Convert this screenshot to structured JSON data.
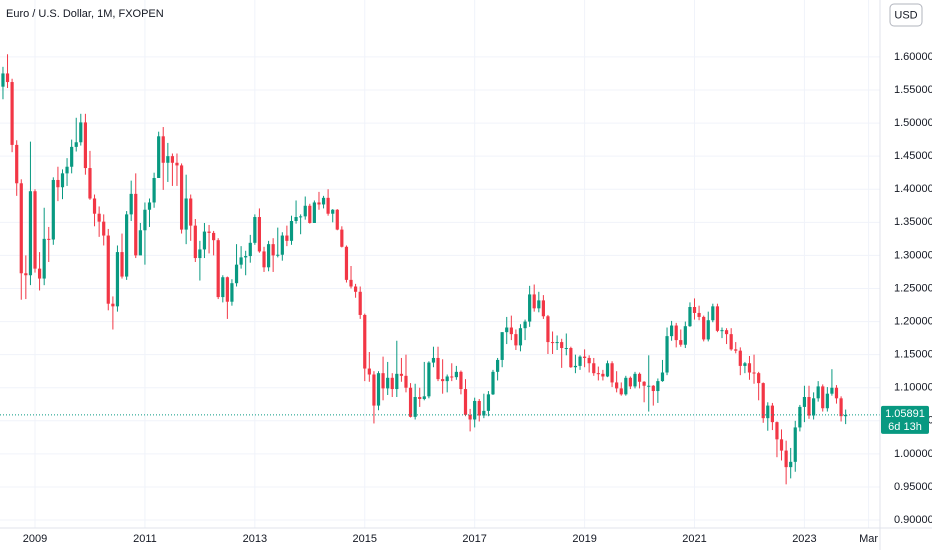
{
  "chart_data": {
    "type": "candlestick",
    "title": "Euro / U.S. Dollar, 1M, FXOPEN",
    "currency": "USD",
    "up_color": "#089981",
    "down_color": "#f23645",
    "grid": true,
    "last_price": 1.05891,
    "countdown": "6d 13h",
    "xlim": [
      2008.363,
      2024.375
    ],
    "xticks": [
      2009,
      2011,
      2013,
      2015,
      2017,
      2019,
      2021,
      2023,
      {
        "value": 2024.167,
        "label": "Mar"
      }
    ],
    "ylim": [
      0.888,
      1.686
    ],
    "yticks": [
      {
        "value": 0.9,
        "label": "0.90000"
      },
      {
        "value": 0.95,
        "label": "0.95000"
      },
      {
        "value": 1.0,
        "label": "1.00000"
      },
      {
        "value": 1.05,
        "label": "1.05000"
      },
      {
        "value": 1.1,
        "label": "1.10000"
      },
      {
        "value": 1.15,
        "label": "1.15000"
      },
      {
        "value": 1.2,
        "label": "1.20000"
      },
      {
        "value": 1.25,
        "label": "1.25000"
      },
      {
        "value": 1.3,
        "label": "1.30000"
      },
      {
        "value": 1.35,
        "label": "1.35000"
      },
      {
        "value": 1.4,
        "label": "1.40000"
      },
      {
        "value": 1.45,
        "label": "1.45000"
      },
      {
        "value": 1.5,
        "label": "1.50000"
      },
      {
        "value": 1.55,
        "label": "1.55000"
      },
      {
        "value": 1.6,
        "label": "1.60000"
      }
    ],
    "x": [
      2008.417,
      2008.5,
      2008.583,
      2008.667,
      2008.75,
      2008.833,
      2008.917,
      2009,
      2009.083,
      2009.167,
      2009.25,
      2009.333,
      2009.417,
      2009.5,
      2009.583,
      2009.667,
      2009.75,
      2009.833,
      2009.917,
      2010,
      2010.083,
      2010.167,
      2010.25,
      2010.333,
      2010.417,
      2010.5,
      2010.583,
      2010.667,
      2010.75,
      2010.833,
      2010.917,
      2011,
      2011.083,
      2011.167,
      2011.25,
      2011.333,
      2011.417,
      2011.5,
      2011.583,
      2011.667,
      2011.75,
      2011.833,
      2011.917,
      2012,
      2012.083,
      2012.167,
      2012.25,
      2012.333,
      2012.417,
      2012.5,
      2012.583,
      2012.667,
      2012.75,
      2012.833,
      2012.917,
      2013,
      2013.083,
      2013.167,
      2013.25,
      2013.333,
      2013.417,
      2013.5,
      2013.583,
      2013.667,
      2013.75,
      2013.833,
      2013.917,
      2014,
      2014.083,
      2014.167,
      2014.25,
      2014.333,
      2014.417,
      2014.5,
      2014.583,
      2014.667,
      2014.75,
      2014.833,
      2014.917,
      2015,
      2015.083,
      2015.167,
      2015.25,
      2015.333,
      2015.417,
      2015.5,
      2015.583,
      2015.667,
      2015.75,
      2015.833,
      2015.917,
      2016,
      2016.083,
      2016.167,
      2016.25,
      2016.333,
      2016.417,
      2016.5,
      2016.583,
      2016.667,
      2016.75,
      2016.833,
      2016.917,
      2017,
      2017.083,
      2017.167,
      2017.25,
      2017.333,
      2017.417,
      2017.5,
      2017.583,
      2017.667,
      2017.75,
      2017.833,
      2017.917,
      2018,
      2018.083,
      2018.167,
      2018.25,
      2018.333,
      2018.417,
      2018.5,
      2018.583,
      2018.667,
      2018.75,
      2018.833,
      2018.917,
      2019,
      2019.083,
      2019.167,
      2019.25,
      2019.333,
      2019.417,
      2019.5,
      2019.583,
      2019.667,
      2019.75,
      2019.833,
      2019.917,
      2020,
      2020.083,
      2020.167,
      2020.25,
      2020.333,
      2020.417,
      2020.5,
      2020.583,
      2020.667,
      2020.75,
      2020.833,
      2020.917,
      2021,
      2021.083,
      2021.167,
      2021.25,
      2021.333,
      2021.417,
      2021.5,
      2021.583,
      2021.667,
      2021.75,
      2021.833,
      2021.917,
      2022,
      2022.083,
      2022.167,
      2022.25,
      2022.333,
      2022.417,
      2022.5,
      2022.583,
      2022.667,
      2022.75,
      2022.833,
      2022.917,
      2023,
      2023.083,
      2023.167,
      2023.25,
      2023.333,
      2023.417,
      2023.5,
      2023.583,
      2023.667,
      2023.75
    ],
    "open": [
      1.555,
      1.575,
      1.562,
      1.467,
      1.409,
      1.273,
      1.27,
      1.397,
      1.28,
      1.265,
      1.325,
      1.324,
      1.414,
      1.403,
      1.424,
      1.434,
      1.464,
      1.471,
      1.501,
      1.432,
      1.386,
      1.363,
      1.351,
      1.33,
      1.227,
      1.223,
      1.305,
      1.268,
      1.362,
      1.393,
      1.3,
      1.338,
      1.369,
      1.38,
      1.417,
      1.48,
      1.44,
      1.45,
      1.44,
      1.436,
      1.339,
      1.386,
      1.345,
      1.296,
      1.309,
      1.336,
      1.334,
      1.323,
      1.237,
      1.267,
      1.23,
      1.258,
      1.286,
      1.297,
      1.299,
      1.319,
      1.358,
      1.306,
      1.282,
      1.317,
      1.3,
      1.301,
      1.33,
      1.322,
      1.352,
      1.358,
      1.359,
      1.375,
      1.349,
      1.38,
      1.377,
      1.387,
      1.363,
      1.369,
      1.339,
      1.313,
      1.263,
      1.253,
      1.245,
      1.21,
      1.129,
      1.12,
      1.073,
      1.122,
      1.099,
      1.115,
      1.098,
      1.121,
      1.118,
      1.1,
      1.056,
      1.086,
      1.083,
      1.087,
      1.138,
      1.145,
      1.113,
      1.11,
      1.117,
      1.116,
      1.124,
      1.098,
      1.059,
      1.052,
      1.08,
      1.058,
      1.065,
      1.09,
      1.124,
      1.142,
      1.184,
      1.191,
      1.181,
      1.164,
      1.19,
      1.2,
      1.241,
      1.22,
      1.232,
      1.208,
      1.169,
      1.168,
      1.169,
      1.16,
      1.16,
      1.131,
      1.133,
      1.147,
      1.145,
      1.137,
      1.122,
      1.121,
      1.117,
      1.137,
      1.108,
      1.099,
      1.09,
      1.115,
      1.102,
      1.121,
      1.109,
      1.103,
      1.103,
      1.095,
      1.11,
      1.123,
      1.178,
      1.194,
      1.172,
      1.165,
      1.193,
      1.222,
      1.213,
      1.207,
      1.173,
      1.202,
      1.223,
      1.186,
      1.187,
      1.181,
      1.158,
      1.156,
      1.133,
      1.137,
      1.123,
      1.122,
      1.107,
      1.054,
      1.073,
      1.048,
      1.022,
      1.005,
      0.98,
      0.988,
      1.04,
      1.071,
      1.086,
      1.058,
      1.084,
      1.102,
      1.069,
      1.091,
      1.1,
      1.084,
      1.057
    ],
    "high": [
      1.585,
      1.604,
      1.567,
      1.474,
      1.415,
      1.3,
      1.472,
      1.4,
      1.305,
      1.372,
      1.343,
      1.418,
      1.434,
      1.43,
      1.447,
      1.475,
      1.508,
      1.514,
      1.514,
      1.458,
      1.392,
      1.374,
      1.362,
      1.34,
      1.238,
      1.315,
      1.333,
      1.367,
      1.413,
      1.424,
      1.349,
      1.38,
      1.386,
      1.425,
      1.487,
      1.494,
      1.47,
      1.454,
      1.454,
      1.439,
      1.422,
      1.392,
      1.355,
      1.322,
      1.349,
      1.346,
      1.337,
      1.326,
      1.27,
      1.268,
      1.264,
      1.317,
      1.314,
      1.307,
      1.331,
      1.362,
      1.371,
      1.313,
      1.322,
      1.326,
      1.342,
      1.335,
      1.345,
      1.36,
      1.383,
      1.362,
      1.389,
      1.378,
      1.383,
      1.396,
      1.39,
      1.4,
      1.37,
      1.37,
      1.344,
      1.315,
      1.284,
      1.257,
      1.253,
      1.212,
      1.154,
      1.125,
      1.125,
      1.147,
      1.139,
      1.122,
      1.171,
      1.145,
      1.15,
      1.107,
      1.106,
      1.1,
      1.139,
      1.14,
      1.162,
      1.162,
      1.143,
      1.12,
      1.137,
      1.133,
      1.126,
      1.113,
      1.068,
      1.085,
      1.083,
      1.091,
      1.095,
      1.127,
      1.145,
      1.184,
      1.207,
      1.209,
      1.188,
      1.196,
      1.203,
      1.254,
      1.256,
      1.245,
      1.24,
      1.21,
      1.185,
      1.179,
      1.174,
      1.182,
      1.162,
      1.15,
      1.149,
      1.158,
      1.149,
      1.145,
      1.132,
      1.127,
      1.141,
      1.14,
      1.125,
      1.108,
      1.118,
      1.117,
      1.124,
      1.123,
      1.11,
      1.149,
      1.104,
      1.114,
      1.142,
      1.191,
      1.201,
      1.198,
      1.188,
      1.2,
      1.229,
      1.235,
      1.224,
      1.209,
      1.215,
      1.227,
      1.227,
      1.191,
      1.19,
      1.19,
      1.169,
      1.161,
      1.139,
      1.148,
      1.15,
      1.124,
      1.108,
      1.078,
      1.077,
      1.049,
      1.037,
      1.02,
      1.009,
      1.05,
      1.074,
      1.103,
      1.103,
      1.093,
      1.11,
      1.105,
      1.101,
      1.128,
      1.104,
      1.087,
      1.067
    ],
    "low": [
      1.536,
      1.553,
      1.456,
      1.39,
      1.233,
      1.234,
      1.255,
      1.274,
      1.247,
      1.255,
      1.29,
      1.316,
      1.382,
      1.385,
      1.405,
      1.424,
      1.457,
      1.466,
      1.422,
      1.384,
      1.344,
      1.328,
      1.315,
      1.217,
      1.188,
      1.215,
      1.265,
      1.263,
      1.352,
      1.296,
      1.306,
      1.286,
      1.343,
      1.372,
      1.418,
      1.399,
      1.411,
      1.405,
      1.405,
      1.333,
      1.317,
      1.322,
      1.29,
      1.262,
      1.296,
      1.303,
      1.3,
      1.234,
      1.229,
      1.204,
      1.224,
      1.253,
      1.28,
      1.27,
      1.289,
      1.316,
      1.304,
      1.275,
      1.276,
      1.275,
      1.297,
      1.292,
      1.314,
      1.316,
      1.348,
      1.332,
      1.354,
      1.348,
      1.349,
      1.369,
      1.371,
      1.36,
      1.35,
      1.338,
      1.312,
      1.259,
      1.25,
      1.236,
      1.204,
      1.11,
      1.109,
      1.046,
      1.066,
      1.081,
      1.089,
      1.086,
      1.086,
      1.109,
      1.093,
      1.055,
      1.052,
      1.071,
      1.081,
      1.084,
      1.131,
      1.11,
      1.091,
      1.093,
      1.11,
      1.112,
      1.09,
      1.057,
      1.034,
      1.04,
      1.049,
      1.054,
      1.057,
      1.089,
      1.111,
      1.131,
      1.166,
      1.172,
      1.157,
      1.155,
      1.172,
      1.192,
      1.215,
      1.214,
      1.204,
      1.151,
      1.151,
      1.157,
      1.13,
      1.149,
      1.13,
      1.122,
      1.127,
      1.131,
      1.123,
      1.118,
      1.111,
      1.111,
      1.116,
      1.101,
      1.093,
      1.088,
      1.088,
      1.098,
      1.099,
      1.099,
      1.078,
      1.064,
      1.073,
      1.077,
      1.109,
      1.119,
      1.171,
      1.161,
      1.162,
      1.16,
      1.192,
      1.203,
      1.202,
      1.17,
      1.17,
      1.199,
      1.184,
      1.175,
      1.166,
      1.156,
      1.152,
      1.119,
      1.122,
      1.112,
      1.106,
      1.081,
      1.047,
      1.035,
      1.036,
      0.995,
      0.99,
      0.954,
      0.963,
      0.973,
      1.034,
      1.048,
      1.053,
      1.052,
      1.079,
      1.064,
      1.064,
      1.088,
      1.076,
      1.049,
      1.045
    ],
    "close": [
      1.575,
      1.562,
      1.467,
      1.409,
      1.273,
      1.27,
      1.397,
      1.28,
      1.265,
      1.325,
      1.324,
      1.414,
      1.403,
      1.424,
      1.434,
      1.464,
      1.471,
      1.501,
      1.432,
      1.386,
      1.363,
      1.351,
      1.33,
      1.227,
      1.223,
      1.305,
      1.268,
      1.362,
      1.393,
      1.3,
      1.338,
      1.369,
      1.38,
      1.417,
      1.48,
      1.44,
      1.45,
      1.44,
      1.436,
      1.339,
      1.386,
      1.345,
      1.296,
      1.309,
      1.336,
      1.334,
      1.323,
      1.237,
      1.267,
      1.23,
      1.258,
      1.286,
      1.297,
      1.299,
      1.319,
      1.358,
      1.306,
      1.282,
      1.317,
      1.3,
      1.301,
      1.33,
      1.322,
      1.352,
      1.358,
      1.359,
      1.375,
      1.349,
      1.38,
      1.377,
      1.387,
      1.363,
      1.369,
      1.339,
      1.313,
      1.263,
      1.253,
      1.245,
      1.21,
      1.129,
      1.12,
      1.073,
      1.122,
      1.099,
      1.115,
      1.098,
      1.121,
      1.118,
      1.1,
      1.056,
      1.086,
      1.083,
      1.087,
      1.138,
      1.145,
      1.113,
      1.11,
      1.117,
      1.116,
      1.124,
      1.098,
      1.059,
      1.052,
      1.08,
      1.058,
      1.065,
      1.09,
      1.124,
      1.142,
      1.184,
      1.191,
      1.181,
      1.164,
      1.19,
      1.2,
      1.241,
      1.22,
      1.232,
      1.208,
      1.169,
      1.168,
      1.169,
      1.16,
      1.16,
      1.131,
      1.133,
      1.147,
      1.145,
      1.137,
      1.122,
      1.121,
      1.117,
      1.137,
      1.108,
      1.099,
      1.09,
      1.115,
      1.102,
      1.121,
      1.109,
      1.103,
      1.103,
      1.095,
      1.11,
      1.123,
      1.178,
      1.194,
      1.172,
      1.165,
      1.193,
      1.222,
      1.213,
      1.207,
      1.173,
      1.202,
      1.223,
      1.186,
      1.187,
      1.181,
      1.158,
      1.156,
      1.133,
      1.137,
      1.123,
      1.122,
      1.107,
      1.054,
      1.073,
      1.048,
      1.022,
      1.005,
      0.98,
      0.988,
      1.04,
      1.071,
      1.086,
      1.058,
      1.084,
      1.102,
      1.069,
      1.091,
      1.1,
      1.084,
      1.057,
      1.05891
    ]
  }
}
